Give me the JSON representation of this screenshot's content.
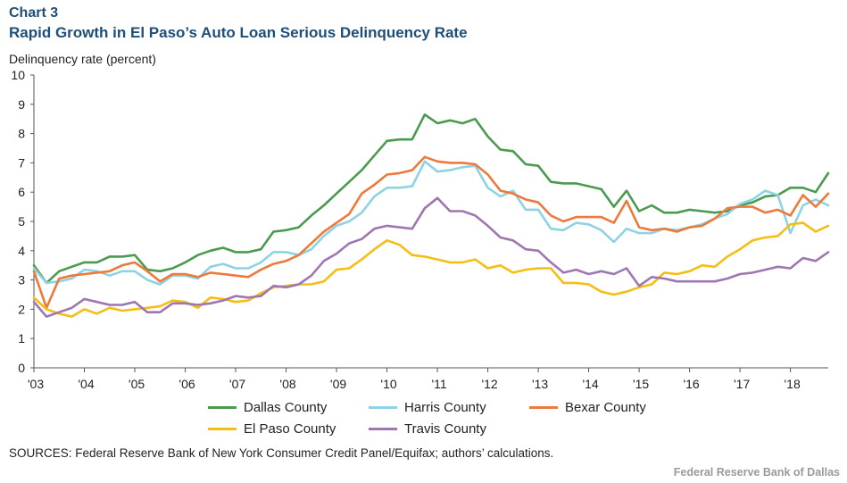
{
  "header": {
    "chart_number": "Chart 3",
    "title": "Rapid Growth in El Paso’s Auto Loan Serious Delinquency Rate"
  },
  "source_note": "SOURCES: Federal Reserve Bank of New York Consumer Credit Panel/Equifax; authors’ calculations.",
  "footer": "Federal Reserve Bank of Dallas",
  "chart_data": {
    "type": "line",
    "title": "Rapid Growth in El Paso’s Auto Loan Serious Delinquency Rate",
    "xlabel": "",
    "ylabel": "Delinquency rate (percent)",
    "ylim": [
      0,
      10
    ],
    "yticks": [
      "0",
      "1",
      "2",
      "3",
      "4",
      "5",
      "6",
      "7",
      "8",
      "9",
      "10"
    ],
    "xlim": [
      2003.0,
      2018.75
    ],
    "xticks": [
      "'03",
      "'04",
      "'05",
      "'06",
      "'07",
      "'08",
      "'09",
      "'10",
      "'11",
      "'12",
      "'13",
      "'14",
      "'15",
      "'16",
      "'17",
      "'18"
    ],
    "grid": false,
    "legend_position": "bottom",
    "x": [
      2003.0,
      2003.25,
      2003.5,
      2003.75,
      2004.0,
      2004.25,
      2004.5,
      2004.75,
      2005.0,
      2005.25,
      2005.5,
      2005.75,
      2006.0,
      2006.25,
      2006.5,
      2006.75,
      2007.0,
      2007.25,
      2007.5,
      2007.75,
      2008.0,
      2008.25,
      2008.5,
      2008.75,
      2009.0,
      2009.25,
      2009.5,
      2009.75,
      2010.0,
      2010.25,
      2010.5,
      2010.75,
      2011.0,
      2011.25,
      2011.5,
      2011.75,
      2012.0,
      2012.25,
      2012.5,
      2012.75,
      2013.0,
      2013.25,
      2013.5,
      2013.75,
      2014.0,
      2014.25,
      2014.5,
      2014.75,
      2015.0,
      2015.25,
      2015.5,
      2015.75,
      2016.0,
      2016.25,
      2016.5,
      2016.75,
      2017.0,
      2017.25,
      2017.5,
      2017.75,
      2018.0,
      2018.25,
      2018.5,
      2018.75
    ],
    "series": [
      {
        "name": "Dallas County",
        "color": "#4a9a4f",
        "values": [
          3.5,
          2.9,
          3.3,
          3.45,
          3.6,
          3.6,
          3.8,
          3.8,
          3.85,
          3.35,
          3.3,
          3.4,
          3.6,
          3.85,
          4.0,
          4.1,
          3.95,
          3.95,
          4.05,
          4.65,
          4.7,
          4.8,
          5.2,
          5.55,
          5.95,
          6.35,
          6.75,
          7.25,
          7.75,
          7.8,
          7.8,
          8.65,
          8.35,
          8.45,
          8.35,
          8.5,
          7.9,
          7.45,
          7.4,
          6.95,
          6.9,
          6.35,
          6.3,
          6.3,
          6.2,
          6.1,
          5.5,
          6.05,
          5.35,
          5.55,
          5.3,
          5.3,
          5.4,
          5.35,
          5.3,
          5.35,
          5.55,
          5.65,
          5.85,
          5.9,
          6.15,
          6.15,
          6.0,
          6.65
        ]
      },
      {
        "name": "Harris County",
        "color": "#8dd3e4",
        "values": [
          3.4,
          2.9,
          2.95,
          3.05,
          3.35,
          3.3,
          3.15,
          3.3,
          3.3,
          3.0,
          2.85,
          3.15,
          3.15,
          3.05,
          3.45,
          3.55,
          3.4,
          3.4,
          3.6,
          3.95,
          3.95,
          3.85,
          4.05,
          4.5,
          4.85,
          5.0,
          5.3,
          5.85,
          6.15,
          6.15,
          6.2,
          7.05,
          6.7,
          6.75,
          6.85,
          6.9,
          6.15,
          5.85,
          6.05,
          5.4,
          5.4,
          4.75,
          4.7,
          4.95,
          4.9,
          4.7,
          4.3,
          4.75,
          4.6,
          4.6,
          4.75,
          4.7,
          4.8,
          4.9,
          5.1,
          5.25,
          5.6,
          5.75,
          6.05,
          5.9,
          4.6,
          5.55,
          5.75,
          5.55
        ]
      },
      {
        "name": "Bexar County",
        "color": "#ec7a3c",
        "values": [
          3.3,
          2.05,
          3.05,
          3.15,
          3.2,
          3.25,
          3.3,
          3.5,
          3.6,
          3.3,
          2.95,
          3.2,
          3.2,
          3.1,
          3.25,
          3.2,
          3.15,
          3.1,
          3.35,
          3.55,
          3.65,
          3.85,
          4.25,
          4.65,
          4.95,
          5.25,
          5.95,
          6.25,
          6.6,
          6.65,
          6.75,
          7.2,
          7.05,
          7.0,
          7.0,
          6.95,
          6.6,
          6.05,
          5.95,
          5.75,
          5.65,
          5.2,
          5.0,
          5.15,
          5.15,
          5.15,
          4.95,
          5.7,
          4.8,
          4.7,
          4.75,
          4.65,
          4.8,
          4.85,
          5.1,
          5.45,
          5.5,
          5.5,
          5.3,
          5.4,
          5.2,
          5.9,
          5.5,
          5.95
        ]
      },
      {
        "name": "El Paso County",
        "color": "#f5be12",
        "values": [
          2.4,
          2.0,
          1.85,
          1.75,
          2.0,
          1.85,
          2.05,
          1.95,
          2.0,
          2.05,
          2.1,
          2.3,
          2.25,
          2.05,
          2.4,
          2.35,
          2.25,
          2.3,
          2.55,
          2.75,
          2.8,
          2.85,
          2.85,
          2.95,
          3.35,
          3.4,
          3.7,
          4.05,
          4.35,
          4.2,
          3.85,
          3.8,
          3.7,
          3.6,
          3.6,
          3.7,
          3.4,
          3.5,
          3.25,
          3.35,
          3.4,
          3.4,
          2.9,
          2.9,
          2.85,
          2.6,
          2.5,
          2.6,
          2.75,
          2.85,
          3.25,
          3.2,
          3.3,
          3.5,
          3.45,
          3.8,
          4.05,
          4.35,
          4.45,
          4.5,
          4.9,
          4.95,
          4.65,
          4.85
        ]
      },
      {
        "name": "Travis County",
        "color": "#9e77b2",
        "values": [
          2.25,
          1.75,
          1.9,
          2.05,
          2.35,
          2.25,
          2.15,
          2.15,
          2.25,
          1.9,
          1.9,
          2.2,
          2.2,
          2.15,
          2.2,
          2.3,
          2.45,
          2.4,
          2.45,
          2.8,
          2.75,
          2.85,
          3.15,
          3.65,
          3.9,
          4.25,
          4.4,
          4.75,
          4.85,
          4.8,
          4.75,
          5.45,
          5.8,
          5.35,
          5.35,
          5.2,
          4.85,
          4.45,
          4.35,
          4.05,
          4.0,
          3.6,
          3.25,
          3.35,
          3.2,
          3.3,
          3.2,
          3.4,
          2.8,
          3.1,
          3.05,
          2.95,
          2.95,
          2.95,
          2.95,
          3.05,
          3.2,
          3.25,
          3.35,
          3.45,
          3.4,
          3.75,
          3.65,
          3.95
        ]
      }
    ]
  }
}
